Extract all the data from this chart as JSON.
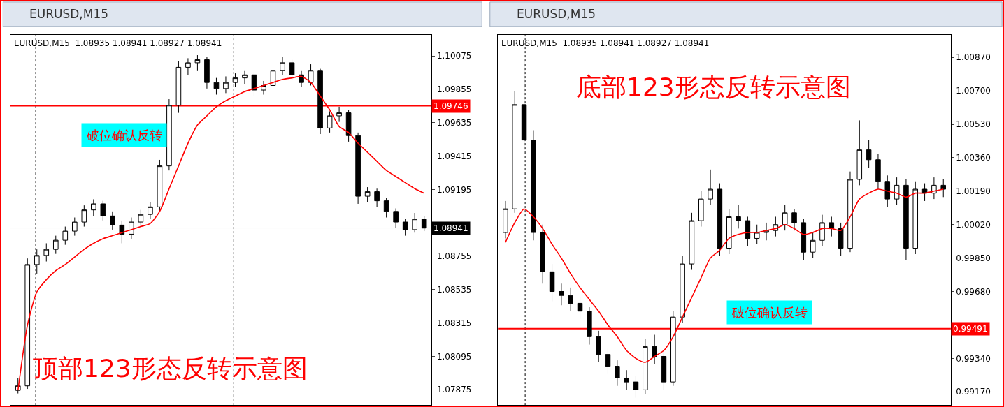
{
  "chart_data": [
    {
      "type": "candlestick",
      "title": "EURUSD,M15",
      "subtitle": "EURUSD,M15  1.08935 1.08941 1.08927 1.08941",
      "color": "#000000",
      "tick_labels": "y",
      "categories": [
        null,
        null,
        null,
        null,
        null,
        null,
        null,
        null,
        null,
        null,
        null,
        null,
        null,
        null,
        null,
        null,
        null,
        null,
        null,
        null,
        null,
        null,
        null,
        null,
        null,
        null,
        null,
        null,
        null,
        null,
        null,
        null,
        null,
        null,
        null,
        null,
        null,
        null,
        null,
        null,
        null,
        null,
        null,
        null
      ],
      "ohlc": [
        [
          1.0787,
          1.0795,
          1.0785,
          1.079
        ],
        [
          1.079,
          1.0874,
          1.0788,
          1.087
        ],
        [
          1.087,
          1.088,
          1.0864,
          1.0876
        ],
        [
          1.0876,
          1.0884,
          1.0872,
          1.088
        ],
        [
          1.088,
          1.0889,
          1.0877,
          1.0886
        ],
        [
          1.0886,
          1.0895,
          1.0883,
          1.0892
        ],
        [
          1.0892,
          1.0901,
          1.0889,
          1.0898
        ],
        [
          1.0898,
          1.0909,
          1.0895,
          1.0906
        ],
        [
          1.0906,
          1.0913,
          1.0902,
          1.091
        ],
        [
          1.091,
          1.0912,
          1.0899,
          1.0902
        ],
        [
          1.0902,
          1.0905,
          1.0893,
          1.0896
        ],
        [
          1.0896,
          1.0899,
          1.0884,
          1.089
        ],
        [
          1.089,
          1.0901,
          1.0887,
          1.0898
        ],
        [
          1.0898,
          1.0906,
          1.0895,
          1.0903
        ],
        [
          1.0903,
          1.0911,
          1.09,
          1.0908
        ],
        [
          1.0908,
          1.0939,
          1.0905,
          1.0935
        ],
        [
          1.0935,
          1.0979,
          1.0932,
          1.0975
        ],
        [
          1.0975,
          1.1004,
          1.097,
          1.1
        ],
        [
          1.1,
          1.1006,
          1.0995,
          1.1003
        ],
        [
          1.1003,
          1.1008,
          1.0998,
          1.1005
        ],
        [
          1.1005,
          1.1007,
          1.0986,
          1.099
        ],
        [
          1.099,
          1.0993,
          1.0982,
          1.0986
        ],
        [
          1.0986,
          1.0994,
          1.0983,
          1.099
        ],
        [
          1.099,
          1.0996,
          1.0987,
          1.0993
        ],
        [
          1.0993,
          1.0998,
          1.0989,
          1.0995
        ],
        [
          1.0995,
          1.0997,
          1.0981,
          1.0985
        ],
        [
          1.0985,
          1.0991,
          1.0982,
          1.0988
        ],
        [
          1.0988,
          1.1001,
          1.0985,
          1.0998
        ],
        [
          1.0998,
          1.1007,
          1.0995,
          1.1003
        ],
        [
          1.1003,
          1.1005,
          1.0992,
          1.0995
        ],
        [
          1.0995,
          1.0998,
          1.0987,
          1.099
        ],
        [
          1.099,
          1.1002,
          1.0988,
          1.0998
        ],
        [
          1.0998,
          1.0999,
          1.0956,
          1.096
        ],
        [
          1.096,
          1.0971,
          1.0957,
          1.0968
        ],
        [
          1.0968,
          1.0974,
          1.0964,
          1.097
        ],
        [
          1.097,
          1.0972,
          1.0951,
          1.0955
        ],
        [
          1.0955,
          1.0957,
          1.091,
          1.0915
        ],
        [
          1.0915,
          1.0921,
          1.0911,
          1.0918
        ],
        [
          1.0918,
          1.092,
          1.0908,
          1.0912
        ],
        [
          1.0912,
          1.0914,
          1.0901,
          1.0905
        ],
        [
          1.0905,
          1.0907,
          1.0894,
          1.0898
        ],
        [
          1.0898,
          1.09,
          1.0889,
          1.0893
        ],
        [
          1.0893,
          1.0904,
          1.0891,
          1.09
        ],
        [
          1.09,
          1.0902,
          1.0892,
          1.0894
        ]
      ],
      "series": [
        {
          "type": "line",
          "color": "#ff0000",
          "values": [
            1.0787,
            1.083,
            1.0852,
            1.086,
            1.0866,
            1.087,
            1.0875,
            1.088,
            1.0884,
            1.0887,
            1.0889,
            1.0891,
            1.0893,
            1.0895,
            1.0897,
            1.0905,
            1.092,
            1.0935,
            1.095,
            1.0962,
            1.0968,
            1.0974,
            1.0978,
            1.0981,
            1.0984,
            1.0986,
            1.0988,
            1.099,
            1.0992,
            1.0993,
            1.0994,
            1.099,
            1.0981,
            1.0972,
            1.0961,
            1.0957,
            1.095,
            1.0944,
            1.0938,
            1.0932,
            1.0928,
            1.0924,
            1.092,
            1.0917
          ]
        }
      ],
      "ylim": [
        1.07774,
        1.10213
      ],
      "yticks": [
        1.10075,
        1.09855,
        1.09635,
        1.09415,
        1.09195,
        1.08755,
        1.08535,
        1.08315,
        1.08095,
        1.07875
      ],
      "ref_lines": [
        {
          "axis": "y",
          "value": 1.09746,
          "label": "1.09746",
          "color": "#ff0000"
        },
        {
          "axis": "y",
          "value": 1.08941,
          "label": "1.08941",
          "color": "#000000"
        }
      ],
      "annotations": [
        "破位确认反转",
        "顶部123形态反转示意图"
      ]
    },
    {
      "type": "candlestick",
      "title": "EURUSD,M15",
      "subtitle": "EURUSD,M15  1.08935 1.08941 1.08927 1.08941",
      "color": "#000000",
      "tick_labels": "y",
      "categories": [
        null,
        null,
        null,
        null,
        null,
        null,
        null,
        null,
        null,
        null,
        null,
        null,
        null,
        null,
        null,
        null,
        null,
        null,
        null,
        null,
        null,
        null,
        null,
        null,
        null,
        null,
        null,
        null,
        null,
        null,
        null,
        null,
        null,
        null,
        null,
        null,
        null,
        null,
        null,
        null,
        null,
        null,
        null,
        null,
        null,
        null,
        null,
        null
      ],
      "ohlc": [
        [
          0.9998,
          1.0014,
          0.9995,
          1.001
        ],
        [
          1.001,
          1.007,
          1.0008,
          1.0063
        ],
        [
          1.0063,
          1.0085,
          1.004,
          1.0045
        ],
        [
          1.0045,
          1.005,
          0.9994,
          0.9998
        ],
        [
          0.9998,
          1.0002,
          0.9972,
          0.9978
        ],
        [
          0.9978,
          0.9982,
          0.9963,
          0.9968
        ],
        [
          0.9968,
          0.9972,
          0.9961,
          0.9966
        ],
        [
          0.9966,
          0.997,
          0.9958,
          0.9962
        ],
        [
          0.9962,
          0.9965,
          0.9954,
          0.9958
        ],
        [
          0.9958,
          0.996,
          0.9941,
          0.9945
        ],
        [
          0.9945,
          0.9948,
          0.9932,
          0.9936
        ],
        [
          0.9936,
          0.9939,
          0.9926,
          0.993
        ],
        [
          0.993,
          0.9933,
          0.992,
          0.9924
        ],
        [
          0.9924,
          0.9928,
          0.9918,
          0.9922
        ],
        [
          0.9922,
          0.9925,
          0.9914,
          0.9918
        ],
        [
          0.9918,
          0.9944,
          0.9916,
          0.994
        ],
        [
          0.994,
          0.9946,
          0.9931,
          0.9935
        ],
        [
          0.9935,
          0.9938,
          0.9918,
          0.9922
        ],
        [
          0.9922,
          0.9958,
          0.992,
          0.9955
        ],
        [
          0.9955,
          0.9986,
          0.9952,
          0.9982
        ],
        [
          0.9982,
          1.0008,
          0.9979,
          1.0004
        ],
        [
          1.0004,
          1.0019,
          1.0001,
          1.0015
        ],
        [
          1.0015,
          1.003,
          1.0012,
          1.002
        ],
        [
          1.002,
          1.0023,
          0.9986,
          0.999
        ],
        [
          0.999,
          1.001,
          0.9987,
          1.0006
        ],
        [
          1.0006,
          1.0012,
          1.0,
          1.0004
        ],
        [
          1.0004,
          1.0006,
          0.9991,
          0.9995
        ],
        [
          0.9995,
          1.0002,
          0.9992,
          0.9998
        ],
        [
          0.9998,
          1.0003,
          0.9994,
          0.9999
        ],
        [
          0.9999,
          1.0006,
          0.9996,
          1.0002
        ],
        [
          1.0002,
          1.0012,
          0.9999,
          1.0008
        ],
        [
          1.0008,
          1.001,
          0.9999,
          1.0003
        ],
        [
          1.0003,
          1.0005,
          0.9984,
          0.9988
        ],
        [
          0.9988,
          0.9998,
          0.9985,
          0.9994
        ],
        [
          0.9994,
          1.0007,
          0.9991,
          1.0003
        ],
        [
          1.0003,
          1.0006,
          0.9996,
          1.0
        ],
        [
          1.0,
          1.0003,
          0.9986,
          0.999
        ],
        [
          0.999,
          1.0029,
          0.9988,
          1.0025
        ],
        [
          1.0025,
          1.0055,
          1.0022,
          1.004
        ],
        [
          1.004,
          1.0045,
          1.0031,
          1.0035
        ],
        [
          1.0035,
          1.0038,
          1.002,
          1.0024
        ],
        [
          1.0024,
          1.0027,
          1.0011,
          1.0015
        ],
        [
          1.0015,
          1.0026,
          1.0012,
          1.0022
        ],
        [
          1.0022,
          1.0025,
          0.9984,
          0.999
        ],
        [
          0.999,
          1.0024,
          0.9987,
          1.002
        ],
        [
          1.002,
          1.0023,
          1.0014,
          1.0018
        ],
        [
          1.0018,
          1.0026,
          1.0015,
          1.0022
        ],
        [
          1.0022,
          1.0025,
          1.0016,
          1.002
        ]
      ],
      "series": [
        {
          "type": "line",
          "color": "#ff0000",
          "values": [
            0.9993,
            1.0003,
            1.001,
            1.0006,
            1.0,
            0.9992,
            0.9985,
            0.9977,
            0.997,
            0.9964,
            0.9958,
            0.9951,
            0.9945,
            0.9938,
            0.9934,
            0.9932,
            0.9935,
            0.9938,
            0.9945,
            0.9955,
            0.9965,
            0.9975,
            0.9985,
            0.9989,
            0.9995,
            0.9997,
            0.9998,
            0.9998,
            0.9999,
            1.0,
            1.0002,
            1.0,
            0.9997,
            0.9998,
            1.0,
            1.0,
            0.9999,
            1.0006,
            1.0015,
            1.0018,
            1.002,
            1.0019,
            1.0018,
            1.0016,
            1.0018,
            1.0018,
            1.0019,
            1.002
          ]
        }
      ],
      "ylim": [
        0.99103,
        1.00984
      ],
      "yticks": [
        {
          "value": 1.0087,
          "label": "1.00870"
        },
        {
          "value": 1.007,
          "label": "1.00700"
        },
        {
          "value": 1.0053,
          "label": "1.00530"
        },
        {
          "value": 1.0036,
          "label": "1.00360"
        },
        {
          "value": 1.0019,
          "label": "1.00190"
        },
        {
          "value": 1.0002,
          "label": "1.00020"
        },
        {
          "value": 0.9985,
          "label": "0.99850"
        },
        {
          "value": 0.9968,
          "label": "0.99680"
        },
        {
          "value": 0.9951,
          "label": null
        },
        {
          "value": 0.9934,
          "label": "0.99340"
        },
        {
          "value": 0.9917,
          "label": "0.99170"
        }
      ],
      "ref_lines": [
        {
          "axis": "y",
          "value": 0.99491,
          "label": "0.99491",
          "color": "#ff0000"
        }
      ],
      "annotations": [
        "破位确认反转",
        "底部123形态反转示意图"
      ]
    }
  ]
}
